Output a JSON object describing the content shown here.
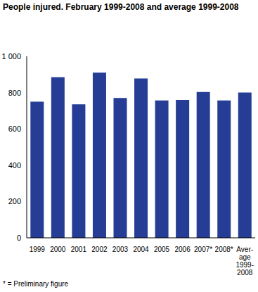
{
  "chart_data": {
    "type": "bar",
    "title": "People injured. February 1999-2008 and average 1999-2008",
    "categories": [
      "1999",
      "2000",
      "2001",
      "2002",
      "2003",
      "2004",
      "2005",
      "2006",
      "2007*",
      "2008*",
      "Aver-age 1999-2008"
    ],
    "values": [
      750,
      885,
      735,
      910,
      770,
      878,
      757,
      760,
      803,
      757,
      800
    ],
    "color": "#263d96",
    "ylim": [
      0,
      1000
    ],
    "yticks": [
      0,
      200,
      400,
      600,
      800,
      {
        "value": 1000,
        "label": "1 000"
      }
    ],
    "grid": false,
    "annotations": [
      "* = Preliminary figure"
    ]
  }
}
